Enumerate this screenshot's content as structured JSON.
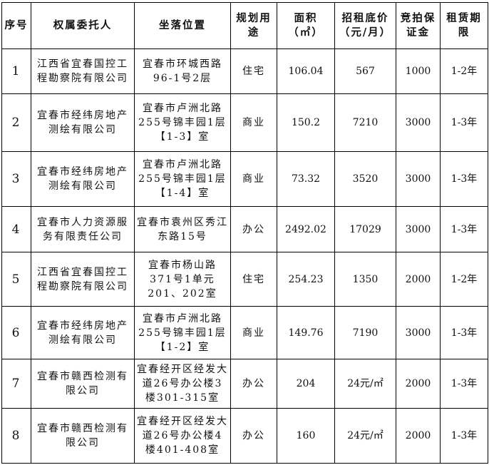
{
  "headers": [
    "序号",
    "权属委托人",
    "坐落位置",
    "规划用途",
    "面积（㎡）",
    "招租底价（元/月）",
    "竞拍保证金",
    "租赁期限"
  ],
  "rows": [
    {
      "no": "1",
      "owner": "江西省宜春国控工程勘察院有限公司",
      "location": "宜春市环城西路96-1号2层",
      "use": "住宅",
      "area": "106.04",
      "price": "567",
      "deposit": "1000",
      "term": "1-2年"
    },
    {
      "no": "2",
      "owner": "宜春市经纬房地产测绘有限公司",
      "location": "宜春市卢洲北路255号锦丰园1层【1-3】室",
      "use": "商业",
      "area": "150.2",
      "price": "7210",
      "deposit": "3000",
      "term": "1-3年"
    },
    {
      "no": "3",
      "owner": "宜春市经纬房地产测绘有限公司",
      "location": "宜春市卢洲北路255号锦丰园1层【1-4】室",
      "use": "商业",
      "area": "73.32",
      "price": "3520",
      "deposit": "3000",
      "term": "1-3年"
    },
    {
      "no": "4",
      "owner": "宜春市人力资源服务有限责任公司",
      "location": "宜春市袁州区秀江东路15号",
      "use": "办公",
      "area": "2492.02",
      "price": "17029",
      "deposit": "3000",
      "term": "1-3年"
    },
    {
      "no": "5",
      "owner": "江西省宜春国控工程勘察院有限公司",
      "location": "宜春市杨山路371号1单元201、202室",
      "use": "住宅",
      "area": "254.23",
      "price": "1350",
      "deposit": "2000",
      "term": "1-2年"
    },
    {
      "no": "6",
      "owner": "宜春市经纬房地产测绘有限公司",
      "location": "宜春市卢洲北路255号锦丰园1层【1-2】室",
      "use": "商业",
      "area": "149.76",
      "price": "7190",
      "deposit": "3000",
      "term": "1-3年"
    },
    {
      "no": "7",
      "owner": "宜春市赣西检测有限公司",
      "location": "宜春经开区经发大道26号办公楼3楼301-315室",
      "use": "办公",
      "area": "204",
      "price": "24元/㎡",
      "deposit": "2000",
      "term": "1-3年"
    },
    {
      "no": "8",
      "owner": "宜春市赣西检测有限公司",
      "location": "宜春经开区经发大道26号办公楼4楼401-408室",
      "use": "办公",
      "area": "160",
      "price": "24元/㎡",
      "deposit": "2000",
      "term": "1-3年"
    }
  ]
}
